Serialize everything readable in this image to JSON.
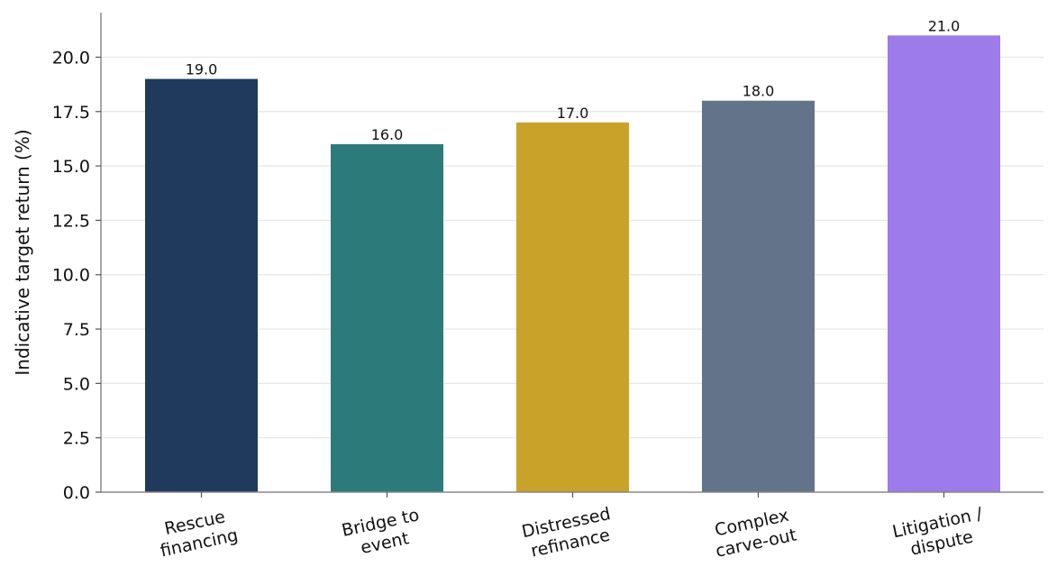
{
  "chart_data": {
    "type": "bar",
    "categories": [
      [
        "Rescue",
        "financing"
      ],
      [
        "Bridge to",
        "event"
      ],
      [
        "Distressed",
        "refinance"
      ],
      [
        "Complex",
        "carve-out"
      ],
      [
        "Litigation /",
        "dispute"
      ]
    ],
    "values": [
      19.0,
      16.0,
      17.0,
      18.0,
      21.0
    ],
    "value_labels": [
      "19.0",
      "16.0",
      "17.0",
      "18.0",
      "21.0"
    ],
    "colors": [
      "#1f3a5c",
      "#2d7a7a",
      "#c9a22a",
      "#63738a",
      "#9d7bea"
    ],
    "ylabel": "Indicative target return (%)",
    "xlabel": "",
    "ylim": [
      0,
      22.05
    ],
    "yticks": [
      "0.0",
      "2.5",
      "5.0",
      "7.5",
      "10.0",
      "12.5",
      "15.0",
      "17.5",
      "20.0"
    ],
    "ytick_values": [
      0,
      2.5,
      5,
      7.5,
      10,
      12.5,
      15,
      17.5,
      20
    ],
    "grid": "horizontal",
    "legend": "none"
  }
}
